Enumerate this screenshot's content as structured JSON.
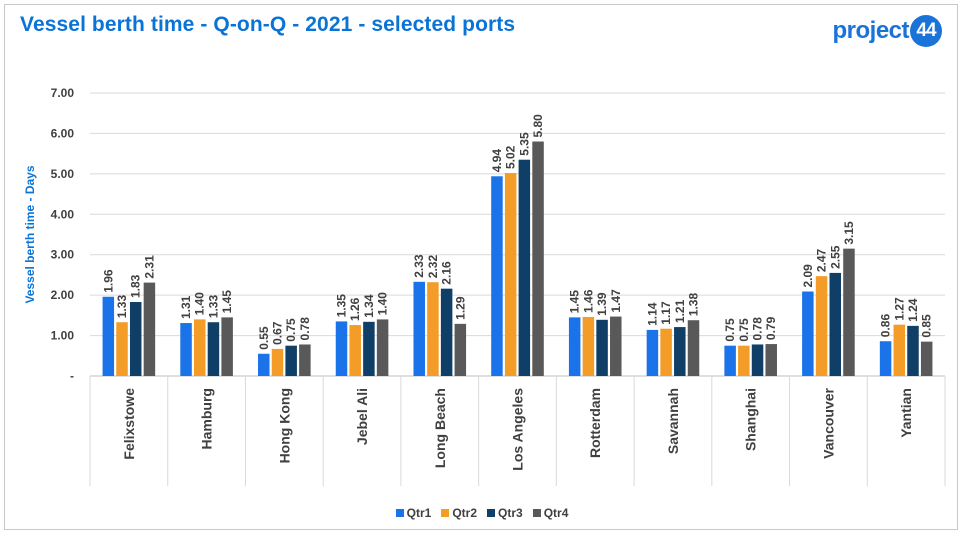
{
  "header": {
    "title": "Vessel berth time - Q-on-Q - 2021 - selected ports",
    "logo_text": "project",
    "logo_badge": "44"
  },
  "chart_data": {
    "type": "bar",
    "title": "Vessel berth time - Q-on-Q - 2021 - selected ports",
    "xlabel": "",
    "ylabel": "Vessel berth time - Days",
    "ylim": [
      0,
      7
    ],
    "yticks": [
      "-",
      "1.00",
      "2.00",
      "3.00",
      "4.00",
      "5.00",
      "6.00",
      "7.00"
    ],
    "grid": true,
    "legend_position": "bottom",
    "categories": [
      "Felixstowe",
      "Hamburg",
      "Hong Kong",
      "Jebel Ali",
      "Long Beach",
      "Los Angeles",
      "Rotterdam",
      "Savannah",
      "Shanghai",
      "Vancouver",
      "Yantian"
    ],
    "series": [
      {
        "name": "Qtr1",
        "color": "#1a73e8",
        "values": [
          1.96,
          1.31,
          0.55,
          1.35,
          2.33,
          4.94,
          1.45,
          1.14,
          0.75,
          2.09,
          0.86
        ]
      },
      {
        "name": "Qtr2",
        "color": "#f39c27",
        "values": [
          1.33,
          1.4,
          0.67,
          1.26,
          2.32,
          5.02,
          1.46,
          1.17,
          0.75,
          2.47,
          1.27
        ]
      },
      {
        "name": "Qtr3",
        "color": "#0f3f66",
        "values": [
          1.83,
          1.33,
          0.75,
          1.34,
          2.16,
          5.35,
          1.39,
          1.21,
          0.78,
          2.55,
          1.24
        ]
      },
      {
        "name": "Qtr4",
        "color": "#595959",
        "values": [
          2.31,
          1.45,
          0.78,
          1.4,
          1.29,
          5.8,
          1.47,
          1.38,
          0.79,
          3.15,
          0.85
        ]
      }
    ],
    "data_labels": [
      [
        "1.96",
        "1.31",
        "0.55",
        "1.35",
        "2.33",
        "4.94",
        "1.45",
        "1.14",
        "0.75",
        "2.09",
        "0.86"
      ],
      [
        "1.33",
        "1.40",
        "0.67",
        "1.26",
        "2.32",
        "5.02",
        "1.46",
        "1.17",
        "0.75",
        "2.47",
        "1.27"
      ],
      [
        "1.83",
        "1.33",
        "0.75",
        "1.34",
        "2.16",
        "5.35",
        "1.39",
        "1.21",
        "0.78",
        "2.55",
        "1.24"
      ],
      [
        "2.31",
        "1.45",
        "0.78",
        "1.40",
        "1.29",
        "5.80",
        "1.47",
        "1.38",
        "0.79",
        "3.15",
        "0.85"
      ]
    ]
  }
}
